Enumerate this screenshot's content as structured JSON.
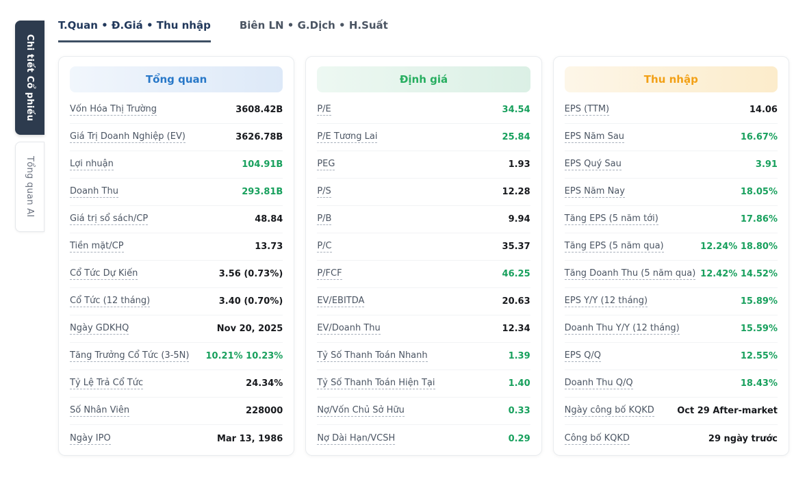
{
  "top_tabs": [
    {
      "label": "T.Quan • Đ.Giá • Thu nhập",
      "active": true
    },
    {
      "label": "Biên LN • G.Dịch • H.Suất",
      "active": false
    }
  ],
  "side_tabs": [
    {
      "label": "Chi tiết Cổ phiếu",
      "active": true
    },
    {
      "label": "Tổng quan AI",
      "active": false
    }
  ],
  "cards": [
    {
      "title": "Tổng quan",
      "theme": "blue",
      "rows": [
        {
          "label": "Vốn Hóa Thị Trường",
          "value": "3608.42B",
          "color": "dark"
        },
        {
          "label": "Giá Trị Doanh Nghiệp (EV)",
          "value": "3626.78B",
          "color": "dark"
        },
        {
          "label": "Lợi nhuận",
          "value": "104.91B",
          "color": "green"
        },
        {
          "label": "Doanh Thu",
          "value": "293.81B",
          "color": "green"
        },
        {
          "label": "Giá trị sổ sách/CP",
          "value": "48.84",
          "color": "dark"
        },
        {
          "label": "Tiền mặt/CP",
          "value": "13.73",
          "color": "dark"
        },
        {
          "label": "Cổ Tức Dự Kiến",
          "value": "3.56 (0.73%)",
          "color": "dark"
        },
        {
          "label": "Cổ Tức (12 tháng)",
          "value": "3.40 (0.70%)",
          "color": "dark"
        },
        {
          "label": "Ngày GDKHQ",
          "value": "Nov 20, 2025",
          "color": "dark"
        },
        {
          "label": "Tăng Trưởng Cổ Tức (3-5N)",
          "value": "10.21% 10.23%",
          "color": "green"
        },
        {
          "label": "Tỷ Lệ Trả Cổ Tức",
          "value": "24.34%",
          "color": "dark"
        },
        {
          "label": "Số Nhân Viên",
          "value": "228000",
          "color": "dark"
        },
        {
          "label": "Ngày IPO",
          "value": "Mar 13, 1986",
          "color": "dark"
        }
      ]
    },
    {
      "title": "Định giá",
      "theme": "green",
      "rows": [
        {
          "label": "P/E",
          "value": "34.54",
          "color": "green"
        },
        {
          "label": "P/E Tương Lai",
          "value": "25.84",
          "color": "green"
        },
        {
          "label": "PEG",
          "value": "1.93",
          "color": "dark"
        },
        {
          "label": "P/S",
          "value": "12.28",
          "color": "dark"
        },
        {
          "label": "P/B",
          "value": "9.94",
          "color": "dark"
        },
        {
          "label": "P/C",
          "value": "35.37",
          "color": "dark"
        },
        {
          "label": "P/FCF",
          "value": "46.25",
          "color": "green"
        },
        {
          "label": "EV/EBITDA",
          "value": "20.63",
          "color": "dark"
        },
        {
          "label": "EV/Doanh Thu",
          "value": "12.34",
          "color": "dark"
        },
        {
          "label": "Tỷ Số Thanh Toán Nhanh",
          "value": "1.39",
          "color": "green"
        },
        {
          "label": "Tỷ Số Thanh Toán Hiện Tại",
          "value": "1.40",
          "color": "green"
        },
        {
          "label": "Nợ/Vốn Chủ Sở Hữu",
          "value": "0.33",
          "color": "green"
        },
        {
          "label": "Nợ Dài Hạn/VCSH",
          "value": "0.29",
          "color": "green"
        }
      ]
    },
    {
      "title": "Thu nhập",
      "theme": "orange",
      "rows": [
        {
          "label": "EPS (TTM)",
          "value": "14.06",
          "color": "dark"
        },
        {
          "label": "EPS Năm Sau",
          "value": "16.67%",
          "color": "green"
        },
        {
          "label": "EPS Quý Sau",
          "value": "3.91",
          "color": "green"
        },
        {
          "label": "EPS Năm Nay",
          "value": "18.05%",
          "color": "green"
        },
        {
          "label": "Tăng EPS (5 năm tới)",
          "value": "17.86%",
          "color": "green"
        },
        {
          "label": "Tăng EPS (5 năm qua)",
          "value": "12.24% 18.80%",
          "color": "green"
        },
        {
          "label": "Tăng Doanh Thu (5 năm qua)",
          "value": "12.42% 14.52%",
          "color": "green"
        },
        {
          "label": "EPS Y/Y (12 tháng)",
          "value": "15.89%",
          "color": "green"
        },
        {
          "label": "Doanh Thu Y/Y (12 tháng)",
          "value": "15.59%",
          "color": "green"
        },
        {
          "label": "EPS Q/Q",
          "value": "12.55%",
          "color": "green"
        },
        {
          "label": "Doanh Thu Q/Q",
          "value": "18.43%",
          "color": "green"
        },
        {
          "label": "Ngày công bố KQKD",
          "value": "Oct 29 After-market",
          "color": "dark"
        },
        {
          "label": "Công bố KQKD",
          "value": "29 ngày trước",
          "color": "dark"
        }
      ]
    }
  ],
  "colors": {
    "accent_blue": "#2878c8",
    "accent_green": "#27ae60",
    "accent_orange": "#f2a016",
    "value_green": "#18a05d",
    "side_tab_active_bg": "#2d3b4e"
  }
}
